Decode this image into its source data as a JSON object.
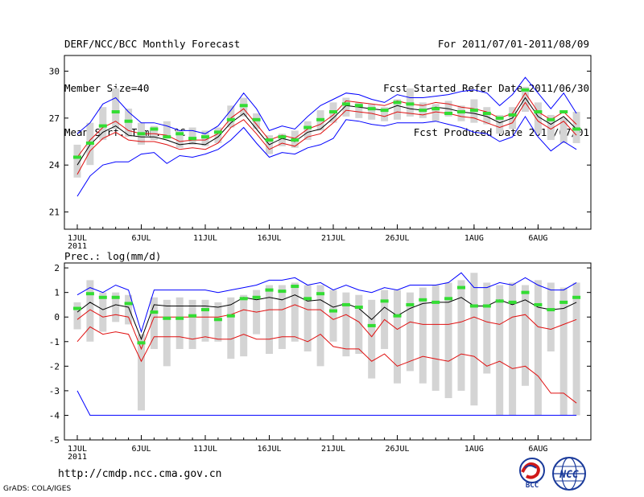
{
  "header": {
    "left": [
      "DERF/NCC/BCC Monthly Forecast",
      "Member Size=40",
      "Mean Surf. Temp.: °C"
    ],
    "right": [
      "For 2011/07/01-2011/08/09",
      "Fcst Started Refer Date 2011/06/30",
      "Fcst Produced Date 2011/07/01"
    ]
  },
  "footer": {
    "url": "http://cmdp.ncc.cma.gov.cn",
    "grads": "GrADS: COLA/IGES",
    "logo_bcc": "BCC",
    "logo_ncc": "NCC"
  },
  "colors": {
    "blue": "#0000ff",
    "red": "#e01010",
    "black": "#000000",
    "green": "#33dd33",
    "grey": "#d4d4d4"
  },
  "chart_data": [
    {
      "type": "line",
      "title": "Mean Surf. Temp.: °C",
      "x_count": 40,
      "ylim": [
        19.9,
        31
      ],
      "yticks": [
        21,
        24,
        27,
        30
      ],
      "xticks": [
        {
          "index": 0,
          "label": "1JUL",
          "sub": "2011"
        },
        {
          "index": 5,
          "label": "6JUL"
        },
        {
          "index": 10,
          "label": "11JUL"
        },
        {
          "index": 15,
          "label": "16JUL"
        },
        {
          "index": 20,
          "label": "21JUL"
        },
        {
          "index": 25,
          "label": "26JUL"
        },
        {
          "index": 31,
          "label": "1AUG"
        },
        {
          "index": 36,
          "label": "6AUG"
        }
      ],
      "range_bars": [
        [
          23.2,
          25.3
        ],
        [
          24.0,
          26.7
        ],
        [
          25.6,
          27.7
        ],
        [
          26.3,
          28.9
        ],
        [
          25.8,
          27.6
        ],
        [
          25.3,
          26.7
        ],
        [
          25.6,
          26.5
        ],
        [
          25.7,
          26.8
        ],
        [
          25.1,
          26.2
        ],
        [
          25.3,
          26.4
        ],
        [
          25.2,
          26.2
        ],
        [
          25.4,
          26.4
        ],
        [
          26.4,
          27.8
        ],
        [
          27.1,
          28.3
        ],
        [
          26.3,
          27.3
        ],
        [
          24.7,
          25.9
        ],
        [
          25.2,
          26.0
        ],
        [
          25.1,
          26.2
        ],
        [
          25.6,
          26.8
        ],
        [
          26.2,
          27.5
        ],
        [
          26.7,
          28.0
        ],
        [
          27.1,
          28.3
        ],
        [
          27.0,
          28.0
        ],
        [
          26.9,
          27.9
        ],
        [
          26.8,
          27.7
        ],
        [
          26.9,
          28.2
        ],
        [
          27.1,
          28.9
        ],
        [
          27.0,
          28.0
        ],
        [
          26.8,
          27.9
        ],
        [
          27.1,
          28.1
        ],
        [
          26.8,
          27.8
        ],
        [
          26.7,
          28.2
        ],
        [
          26.6,
          27.7
        ],
        [
          26.0,
          27.2
        ],
        [
          26.3,
          27.7
        ],
        [
          27.4,
          29.0
        ],
        [
          26.0,
          28.0
        ],
        [
          25.6,
          27.2
        ],
        [
          25.4,
          27.0
        ],
        [
          25.4,
          27.4
        ]
      ],
      "green_marks": [
        24.5,
        25.4,
        26.5,
        27.4,
        26.8,
        26.0,
        26.3,
        25.8,
        26.0,
        25.7,
        25.8,
        26.1,
        26.9,
        27.8,
        26.9,
        25.6,
        25.8,
        25.6,
        26.4,
        26.9,
        27.4,
        27.9,
        27.8,
        27.6,
        27.5,
        28.0,
        27.9,
        27.5,
        27.6,
        27.3,
        27.4,
        27.5,
        27.3,
        27.0,
        27.2,
        28.8,
        27.4,
        26.9,
        27.4,
        26.3
      ],
      "series": [
        {
          "name": "max",
          "color": "#0000ff",
          "values": [
            26.0,
            26.7,
            27.9,
            28.3,
            27.4,
            26.7,
            26.7,
            26.5,
            26.2,
            26.2,
            26.0,
            26.5,
            27.5,
            28.6,
            27.6,
            26.2,
            26.5,
            26.3,
            27.1,
            27.8,
            28.2,
            28.6,
            28.5,
            28.2,
            28.0,
            28.5,
            28.3,
            28.3,
            28.4,
            28.5,
            28.7,
            28.8,
            28.6,
            27.8,
            28.5,
            29.6,
            28.6,
            27.6,
            28.6,
            27.3
          ]
        },
        {
          "name": "upper",
          "color": "#e01010",
          "values": [
            24.5,
            25.6,
            26.4,
            26.8,
            26.2,
            26.0,
            26.0,
            25.9,
            25.5,
            25.6,
            25.6,
            26.0,
            27.0,
            27.6,
            26.6,
            25.6,
            25.9,
            25.7,
            26.3,
            26.6,
            27.2,
            28.1,
            28.0,
            27.9,
            27.8,
            28.1,
            27.9,
            27.8,
            28.0,
            27.9,
            27.7,
            27.6,
            27.4,
            27.0,
            27.3,
            28.6,
            27.4,
            26.9,
            27.4,
            26.6
          ]
        },
        {
          "name": "mean",
          "color": "#000000",
          "values": [
            24.0,
            25.3,
            26.1,
            26.5,
            25.9,
            25.8,
            25.8,
            25.6,
            25.3,
            25.4,
            25.3,
            25.8,
            26.7,
            27.3,
            26.3,
            25.3,
            25.7,
            25.5,
            26.1,
            26.3,
            27.0,
            27.8,
            27.7,
            27.6,
            27.5,
            27.8,
            27.6,
            27.5,
            27.7,
            27.6,
            27.4,
            27.3,
            27.1,
            26.7,
            27.0,
            28.3,
            27.1,
            26.6,
            27.1,
            26.3
          ]
        },
        {
          "name": "lower",
          "color": "#e01010",
          "values": [
            23.4,
            24.9,
            25.7,
            26.1,
            25.6,
            25.5,
            25.5,
            25.3,
            25.0,
            25.1,
            25.0,
            25.4,
            26.4,
            26.9,
            26.0,
            25.0,
            25.4,
            25.2,
            25.8,
            26.0,
            26.7,
            27.5,
            27.4,
            27.3,
            27.1,
            27.4,
            27.3,
            27.2,
            27.4,
            27.3,
            27.1,
            27.0,
            26.7,
            26.4,
            26.7,
            28.0,
            26.8,
            26.3,
            26.8,
            25.9
          ]
        },
        {
          "name": "min",
          "color": "#0000ff",
          "values": [
            22.0,
            23.3,
            24.0,
            24.2,
            24.2,
            24.7,
            24.8,
            24.1,
            24.6,
            24.5,
            24.7,
            25.0,
            25.6,
            26.4,
            25.4,
            24.5,
            24.8,
            24.7,
            25.1,
            25.3,
            25.7,
            26.9,
            26.8,
            26.6,
            26.5,
            26.7,
            26.7,
            26.7,
            26.8,
            26.6,
            26.4,
            26.1,
            26.0,
            25.5,
            25.8,
            27.1,
            25.8,
            24.9,
            25.5,
            25.0
          ]
        }
      ]
    },
    {
      "type": "line",
      "title": "Prec.: log(mm/d)",
      "x_count": 40,
      "ylim": [
        -5,
        2.2
      ],
      "yticks": [
        -5,
        -4,
        -3,
        -2,
        -1,
        0,
        1,
        2
      ],
      "xticks": [
        {
          "index": 0,
          "label": "1JUL",
          "sub": "2011"
        },
        {
          "index": 5,
          "label": "6JUL"
        },
        {
          "index": 10,
          "label": "11JUL"
        },
        {
          "index": 15,
          "label": "16JUL"
        },
        {
          "index": 20,
          "label": "21JUL"
        },
        {
          "index": 25,
          "label": "26JUL"
        },
        {
          "index": 31,
          "label": "1AUG"
        },
        {
          "index": 36,
          "label": "6AUG"
        }
      ],
      "range_bars": [
        [
          -0.5,
          0.6
        ],
        [
          -1.0,
          1.5
        ],
        [
          -0.6,
          1.0
        ],
        [
          -0.2,
          1.0
        ],
        [
          -0.3,
          0.9
        ],
        [
          -3.8,
          -0.7
        ],
        [
          -1.3,
          0.8
        ],
        [
          -2.0,
          0.7
        ],
        [
          -1.3,
          0.8
        ],
        [
          -1.3,
          0.7
        ],
        [
          -1.0,
          0.7
        ],
        [
          -1.0,
          0.6
        ],
        [
          -1.7,
          0.8
        ],
        [
          -1.6,
          0.9
        ],
        [
          -0.7,
          1.1
        ],
        [
          -1.5,
          1.3
        ],
        [
          -1.3,
          1.3
        ],
        [
          -1.0,
          1.4
        ],
        [
          -1.4,
          1.3
        ],
        [
          -2.0,
          1.3
        ],
        [
          -1.0,
          1.1
        ],
        [
          -1.6,
          1.0
        ],
        [
          -1.5,
          0.9
        ],
        [
          -2.5,
          0.7
        ],
        [
          -1.3,
          1.1
        ],
        [
          -2.7,
          1.1
        ],
        [
          -2.2,
          1.0
        ],
        [
          -2.7,
          1.2
        ],
        [
          -3.0,
          1.3
        ],
        [
          -3.3,
          1.4
        ],
        [
          -3.0,
          1.5
        ],
        [
          -3.6,
          1.8
        ],
        [
          -2.3,
          1.4
        ],
        [
          -4.0,
          1.3
        ],
        [
          -4.0,
          1.4
        ],
        [
          -2.8,
          1.3
        ],
        [
          -4.0,
          1.5
        ],
        [
          -1.4,
          1.4
        ],
        [
          -4.0,
          1.2
        ],
        [
          -4.0,
          1.4
        ]
      ],
      "green_marks": [
        0.35,
        0.95,
        0.8,
        0.8,
        0.55,
        -1.05,
        0.2,
        -0.05,
        -0.05,
        0.05,
        0.3,
        -0.1,
        0.05,
        0.75,
        0.8,
        1.1,
        1.05,
        1.25,
        0.75,
        0.95,
        0.25,
        0.5,
        0.4,
        -0.35,
        0.65,
        0.05,
        0.5,
        0.7,
        0.6,
        0.75,
        1.2,
        0.45,
        0.45,
        0.65,
        0.6,
        1.0,
        0.5,
        0.3,
        0.6,
        0.8
      ],
      "series": [
        {
          "name": "max",
          "color": "#0000ff",
          "values": [
            0.9,
            1.2,
            1.0,
            1.3,
            1.1,
            -0.6,
            1.1,
            1.1,
            1.1,
            1.1,
            1.1,
            1.0,
            1.1,
            1.2,
            1.3,
            1.5,
            1.5,
            1.6,
            1.3,
            1.4,
            1.1,
            1.3,
            1.1,
            1.0,
            1.2,
            1.1,
            1.3,
            1.3,
            1.3,
            1.4,
            1.8,
            1.2,
            1.2,
            1.4,
            1.3,
            1.6,
            1.3,
            1.1,
            1.1,
            1.4
          ]
        },
        {
          "name": "mean",
          "color": "#000000",
          "values": [
            0.2,
            0.6,
            0.3,
            0.5,
            0.4,
            -0.9,
            0.5,
            0.45,
            0.45,
            0.45,
            0.45,
            0.4,
            0.5,
            0.8,
            0.7,
            0.8,
            0.7,
            0.9,
            0.65,
            0.7,
            0.4,
            0.55,
            0.35,
            -0.1,
            0.4,
            0.05,
            0.35,
            0.55,
            0.6,
            0.6,
            0.8,
            0.45,
            0.45,
            0.7,
            0.5,
            0.7,
            0.4,
            0.3,
            0.35,
            0.6
          ]
        },
        {
          "name": "upper",
          "color": "#e01010",
          "values": [
            -0.1,
            0.3,
            0.0,
            0.1,
            0.0,
            -1.3,
            0.0,
            0.0,
            0.0,
            0.0,
            0.0,
            0.0,
            0.1,
            0.3,
            0.2,
            0.3,
            0.3,
            0.5,
            0.3,
            0.3,
            -0.1,
            0.1,
            -0.2,
            -0.8,
            -0.1,
            -0.5,
            -0.2,
            -0.3,
            -0.3,
            -0.3,
            -0.2,
            0.0,
            -0.2,
            -0.3,
            0.0,
            0.1,
            -0.4,
            -0.5,
            -0.3,
            -0.1
          ]
        },
        {
          "name": "lower",
          "color": "#e01010",
          "values": [
            -1.0,
            -0.4,
            -0.7,
            -0.6,
            -0.7,
            -1.8,
            -0.8,
            -0.8,
            -0.8,
            -0.9,
            -0.8,
            -0.9,
            -0.9,
            -0.7,
            -0.9,
            -0.9,
            -0.8,
            -0.8,
            -1.0,
            -0.7,
            -1.2,
            -1.3,
            -1.3,
            -1.8,
            -1.5,
            -2.0,
            -1.8,
            -1.6,
            -1.7,
            -1.8,
            -1.5,
            -1.6,
            -2.0,
            -1.8,
            -2.1,
            -2.0,
            -2.4,
            -3.1,
            -3.1,
            -3.5
          ]
        },
        {
          "name": "min",
          "color": "#0000ff",
          "values": [
            -3.0,
            -4.0,
            -4.0,
            -4.0,
            -4.0,
            -4.0,
            -4.0,
            -4.0,
            -4.0,
            -4.0,
            -4.0,
            -4.0,
            -4.0,
            -4.0,
            -4.0,
            -4.0,
            -4.0,
            -4.0,
            -4.0,
            -4.0,
            -4.0,
            -4.0,
            -4.0,
            -4.0,
            -4.0,
            -4.0,
            -4.0,
            -4.0,
            -4.0,
            -4.0,
            -4.0,
            -4.0,
            -4.0,
            -4.0,
            -4.0,
            -4.0,
            -4.0,
            -4.0,
            -4.0,
            -4.0
          ]
        }
      ]
    }
  ]
}
